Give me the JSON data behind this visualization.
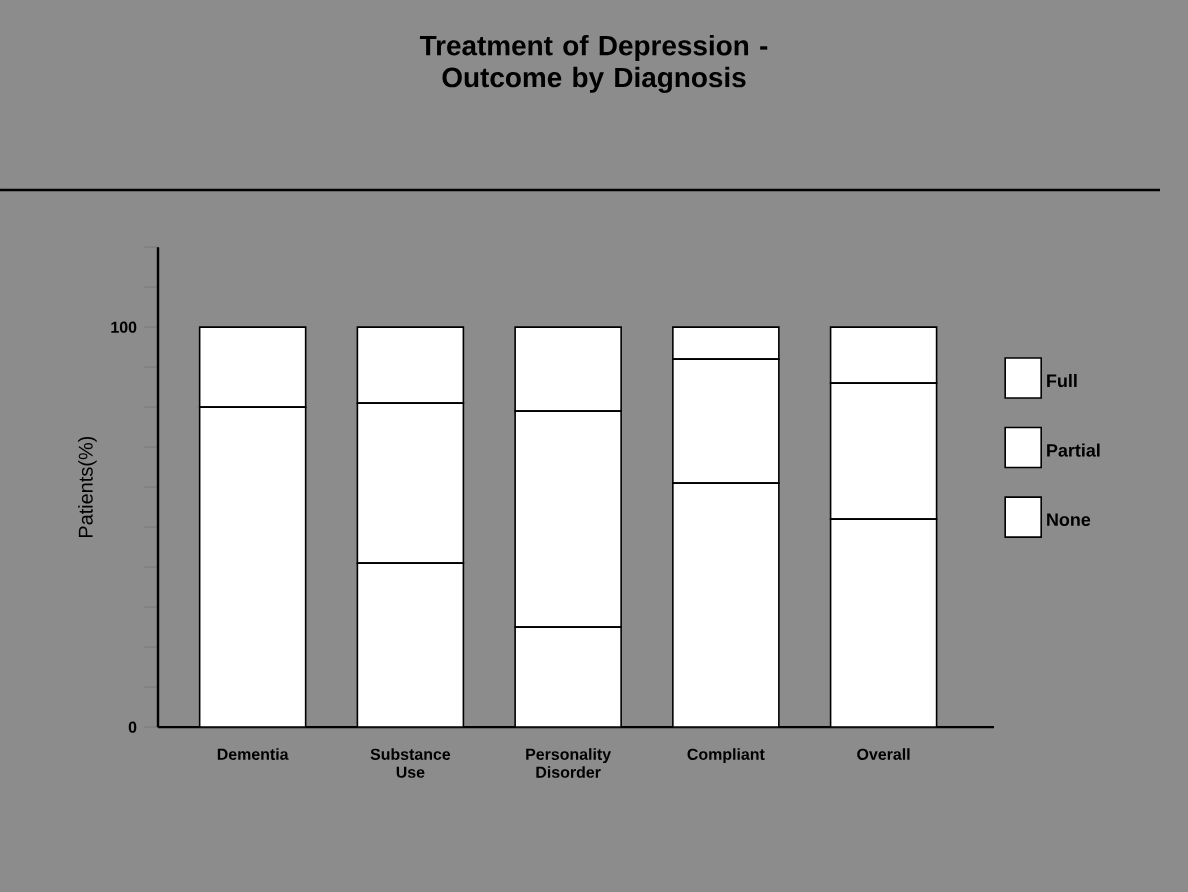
{
  "chart_data": {
    "type": "bar",
    "stacked": true,
    "title": "Treatment of Depression -\nOutcome by Diagnosis",
    "ylabel": "Patients(%)",
    "categories": [
      "Dementia",
      "Substance Use",
      "Personality Disorder",
      "Compliant",
      "Overall"
    ],
    "series": [
      {
        "name": "None",
        "color": "#ffffff",
        "values": [
          80,
          41,
          25,
          61,
          52
        ]
      },
      {
        "name": "Partial",
        "color": "#ffffff",
        "values": [
          0,
          40,
          54,
          31,
          34
        ]
      },
      {
        "name": "Full",
        "color": "#ffffff",
        "values": [
          20,
          19,
          21,
          8,
          14
        ]
      }
    ],
    "ylim": [
      0,
      120
    ],
    "yticks": [
      0,
      {
        "value": 10,
        "label": null
      },
      {
        "value": 20,
        "label": null
      },
      {
        "value": 30,
        "label": null
      },
      {
        "value": 40,
        "label": null
      },
      {
        "value": 50,
        "label": null
      },
      {
        "value": 60,
        "label": null
      },
      {
        "value": 70,
        "label": null
      },
      {
        "value": 80,
        "label": null
      },
      {
        "value": 90,
        "label": null
      },
      100,
      {
        "value": 110,
        "label": null
      },
      {
        "value": 120,
        "label": null
      }
    ],
    "legend": "right"
  }
}
